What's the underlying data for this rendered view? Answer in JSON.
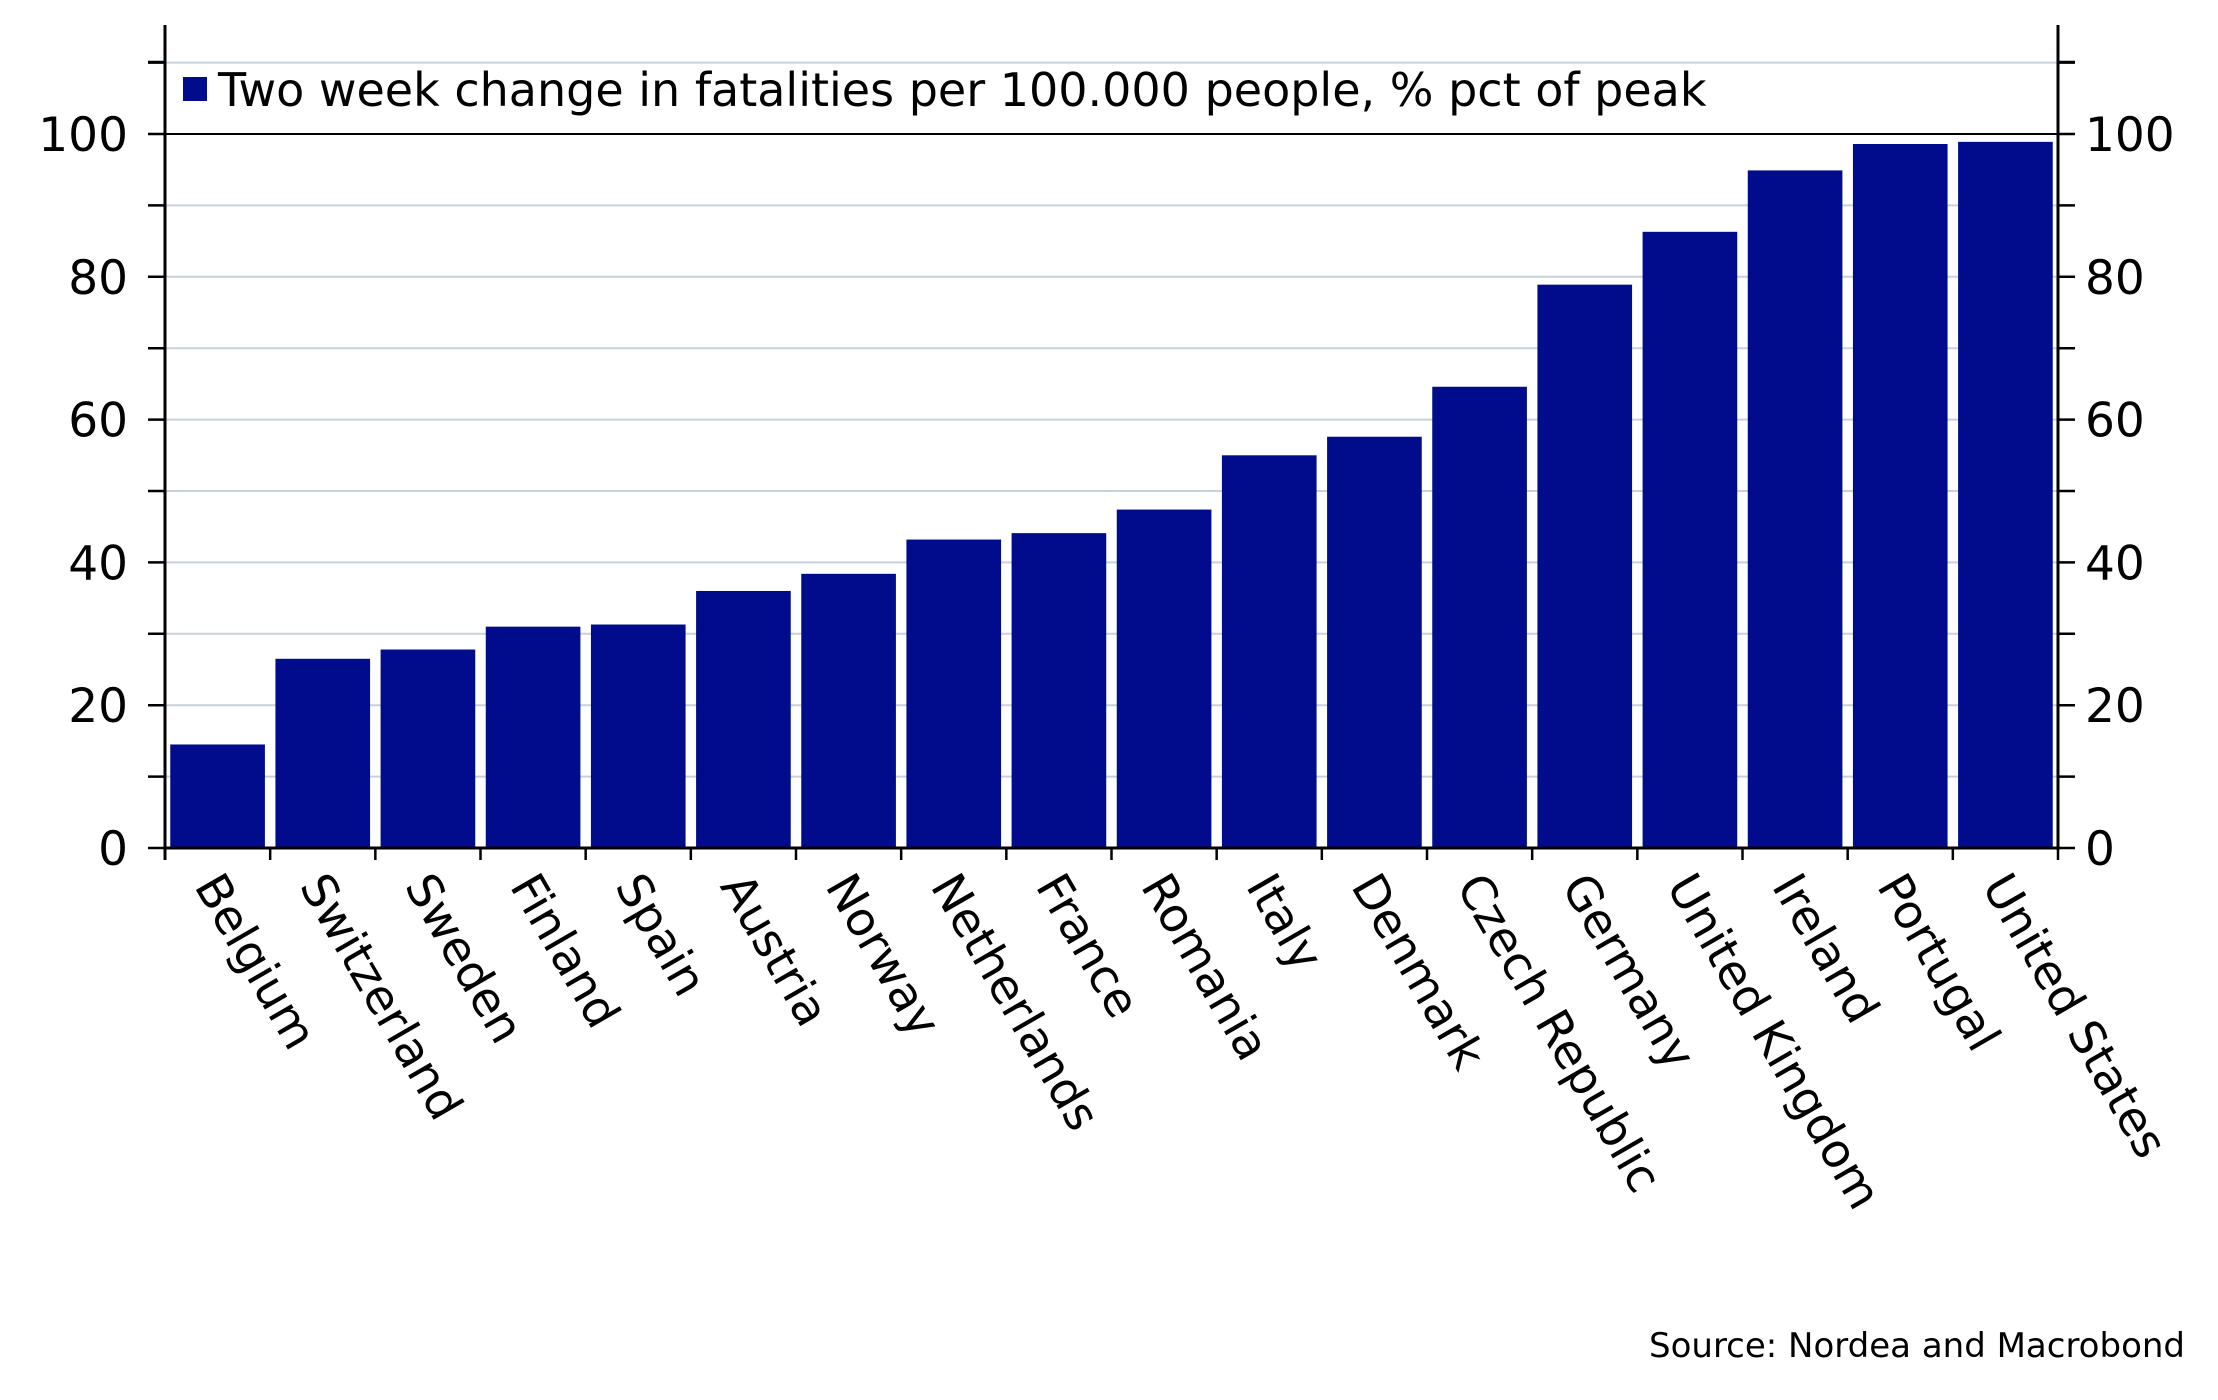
{
  "chart_data": {
    "type": "bar",
    "categories": [
      "Belgium",
      "Switzerland",
      "Sweden",
      "Finland",
      "Spain",
      "Austria",
      "Norway",
      "Netherlands",
      "France",
      "Romania",
      "Italy",
      "Denmark",
      "Czech Republic",
      "Germany",
      "United Kingdom",
      "Ireland",
      "Portugal",
      "United States"
    ],
    "series": [
      {
        "name": "Two week change in fatalities per 100.000 people, % pct of peak",
        "values": [
          14.5,
          26.5,
          27.8,
          31,
          31.3,
          36,
          38.4,
          43.2,
          44.1,
          47.4,
          55,
          57.6,
          64.6,
          78.9,
          86.3,
          94.9,
          98.6,
          98.9
        ],
        "color": "#000c8c"
      }
    ],
    "ylim": [
      0,
      114
    ],
    "yticks": [
      0,
      20,
      40,
      60,
      80,
      100
    ],
    "ytick_labels": [
      "0",
      "20",
      "40",
      "60",
      "80",
      "100"
    ],
    "gridlines": [
      10,
      20,
      30,
      40,
      50,
      60,
      70,
      80,
      90,
      100,
      110
    ],
    "grid": true,
    "secondary_y_axis": true,
    "legend_position": "top-left",
    "grid_color": "#c8d2de",
    "source": "Source: Nordea and Macrobond"
  }
}
